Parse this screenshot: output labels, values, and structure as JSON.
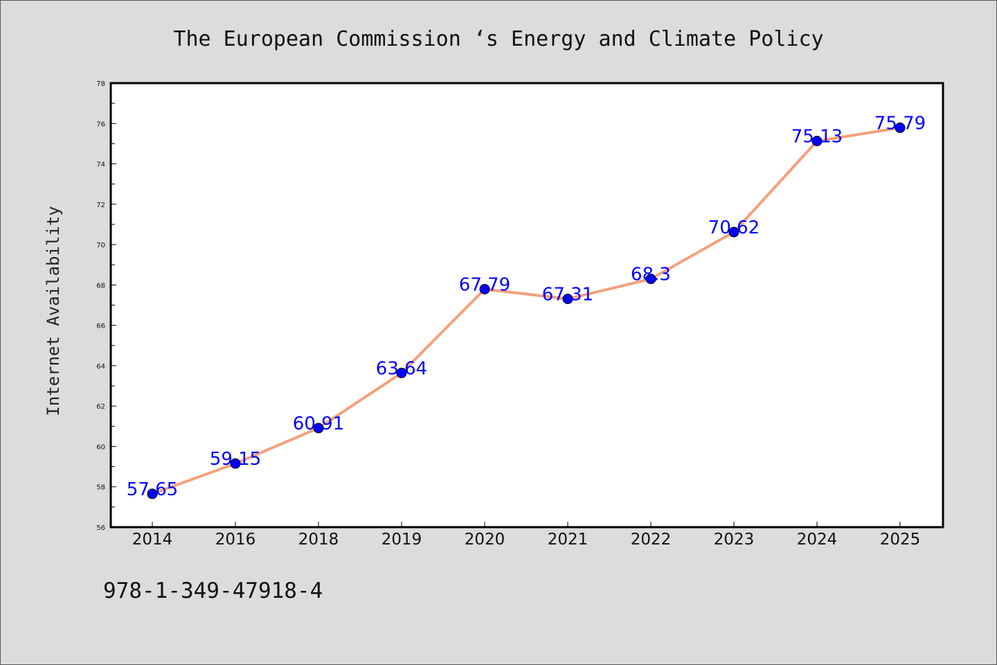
{
  "title": "The European Commission ‘s Energy and Climate Policy",
  "ylabel": "Internet Availability",
  "footer_text": "978-1-349-47918-4",
  "colors": {
    "background": "#dcdcdc",
    "plot_background": "#ffffff",
    "line": "#f4a07c",
    "marker": "#0000ff",
    "data_label": "#0000ff"
  },
  "chart_data": {
    "type": "line",
    "title": "The European Commission ‘s Energy and Climate Policy",
    "xlabel": "",
    "ylabel": "Internet Availability",
    "categories": [
      "2014",
      "2016",
      "2018",
      "2019",
      "2020",
      "2021",
      "2022",
      "2023",
      "2024",
      "2025"
    ],
    "series": [
      {
        "values": [
          57.65,
          59.15,
          60.91,
          63.64,
          67.79,
          67.31,
          68.3,
          70.62,
          75.13,
          75.79
        ],
        "labels": [
          "57.65",
          "59.15",
          "60.91",
          "63.64",
          "67.79",
          "67.31",
          "68.3",
          "70.62",
          "75.13",
          "75.79"
        ]
      }
    ],
    "ylim": [
      56,
      78
    ],
    "yticks": [
      "56",
      "58",
      "60",
      "62",
      "64",
      "66",
      "68",
      "70",
      "72",
      "74",
      "76",
      "78"
    ],
    "grid": false,
    "legend": "none"
  }
}
